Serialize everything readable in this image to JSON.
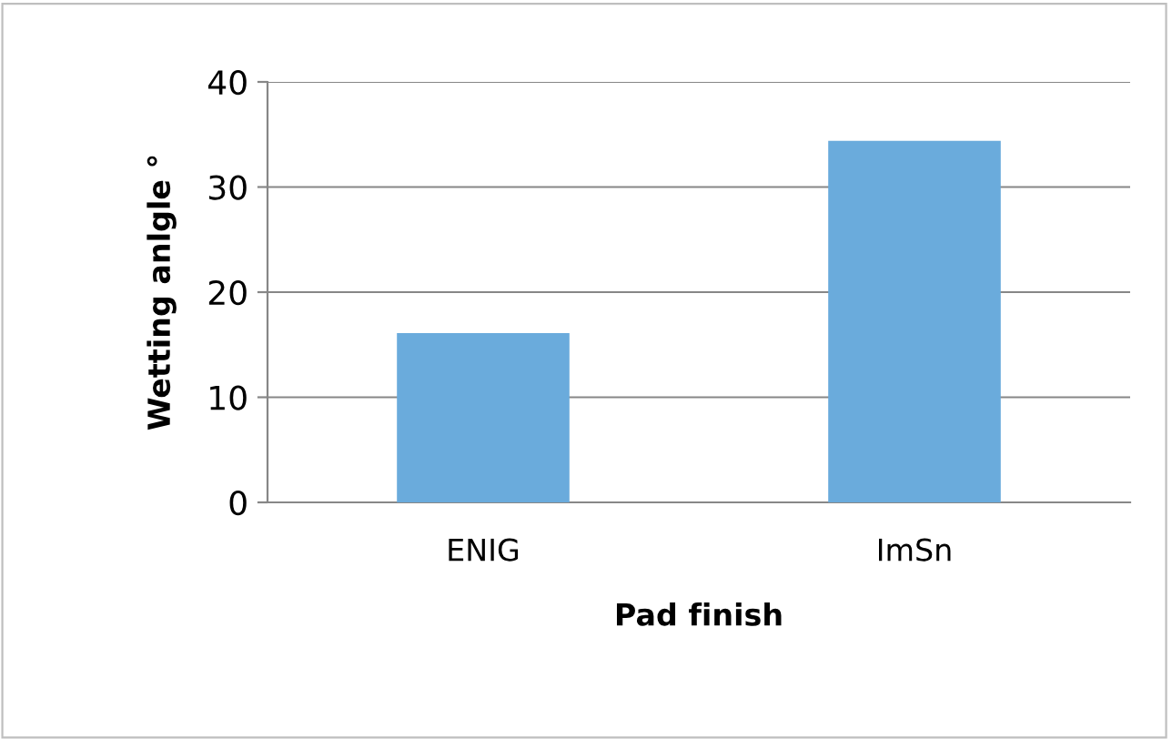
{
  "chart_data": {
    "type": "bar",
    "categories": [
      "ENIG",
      "ImSn"
    ],
    "values": [
      16.1,
      34.4
    ],
    "color": "#6aabdc",
    "xlabel": "Pad finish",
    "ylabel": "Wetting anlgle °",
    "ylim": [
      0,
      40
    ],
    "yticks": [
      0,
      10,
      20,
      30,
      40
    ],
    "grid": "y",
    "legend": false
  }
}
